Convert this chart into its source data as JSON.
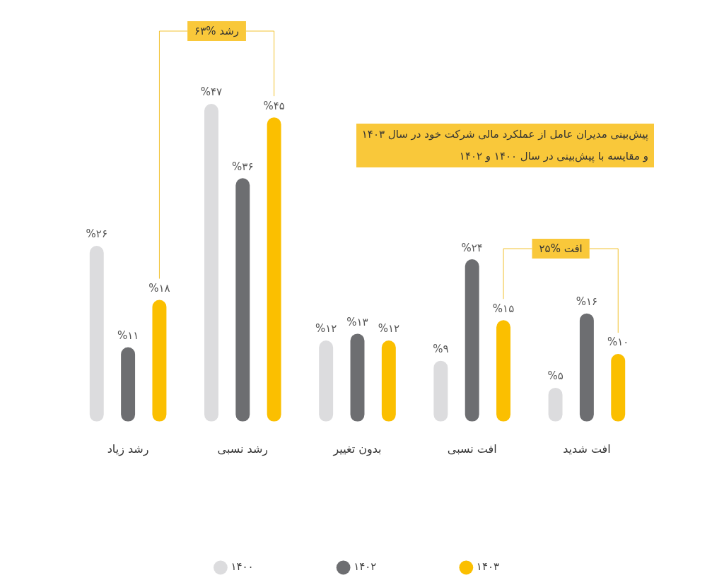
{
  "chart_data": {
    "type": "bar",
    "title": "پیش‌بینی مدیران عامل از عملکرد مالی شرکت خود در سال ۱۴۰۳\nو مقایسه با پیش‌بینی در سال ۱۴۰۰ و ۱۴۰۲",
    "categories": [
      "رشد زیاد",
      "رشد نسبی",
      "بدون تغییر",
      "افت نسبی",
      "افت شدید"
    ],
    "series": [
      {
        "name": "۱۴۰۰",
        "color": "#dcdcde",
        "values": [
          26,
          47,
          12,
          9,
          5
        ],
        "value_labels": [
          "%۲۶",
          "%۴۷",
          "%۱۲",
          "%۹",
          "%۵"
        ]
      },
      {
        "name": "۱۴۰۲",
        "color": "#6d6e71",
        "values": [
          11,
          36,
          13,
          24,
          16
        ],
        "value_labels": [
          "%۱۱",
          "%۳۶",
          "%۱۳",
          "%۲۴",
          "%۱۶"
        ]
      },
      {
        "name": "۱۴۰۳",
        "color": "#fbbf00",
        "values": [
          18,
          45,
          12,
          15,
          10
        ],
        "value_labels": [
          "%۱۸",
          "%۴۵",
          "%۱۲",
          "%۱۵",
          "%۱۰"
        ]
      }
    ],
    "tick_labels": "x",
    "grid": false,
    "legend": "bottom",
    "annotations": [
      "رشد %۶۳",
      "افت %۲۵"
    ]
  }
}
